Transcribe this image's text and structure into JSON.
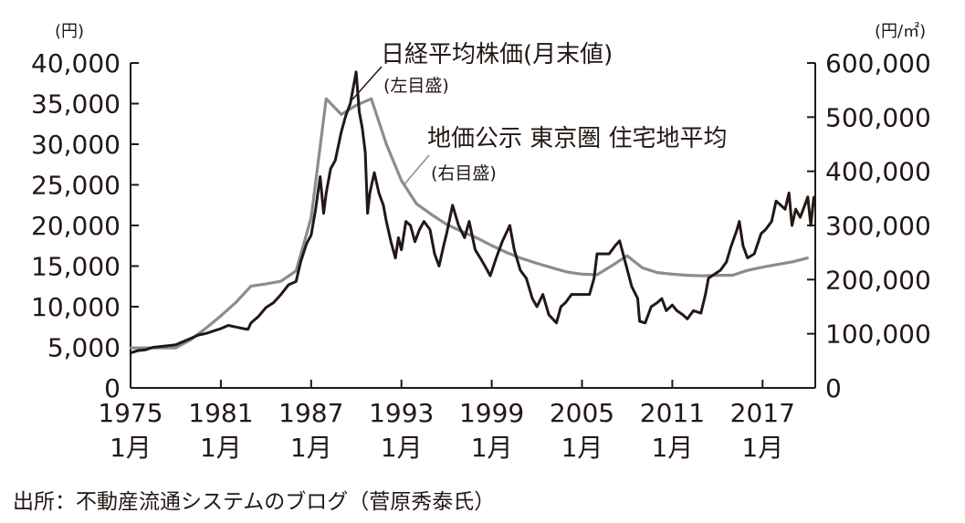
{
  "chart_data": {
    "type": "line",
    "title": "",
    "left_axis": {
      "unit": "(円)",
      "range": [
        0,
        40000
      ],
      "ticks": [
        0,
        5000,
        10000,
        15000,
        20000,
        25000,
        30000,
        35000,
        40000
      ],
      "tick_labels": [
        "0",
        "5,000",
        "10,000",
        "15,000",
        "20,000",
        "25,000",
        "30,000",
        "35,000",
        "40,000"
      ]
    },
    "right_axis": {
      "unit": "(円/㎡)",
      "range": [
        0,
        600000
      ],
      "ticks": [
        0,
        100000,
        200000,
        300000,
        400000,
        500000,
        600000
      ],
      "tick_labels": [
        "0",
        "100,000",
        "200,000",
        "300,000",
        "400,000",
        "500,000",
        "600,000"
      ]
    },
    "x_axis": {
      "range": [
        1975.0,
        2020.5
      ],
      "ticks": [
        1975,
        1981,
        1987,
        1993,
        1999,
        2005,
        2011,
        2017
      ],
      "tick_labels_year": [
        "1975",
        "1981",
        "1987",
        "1993",
        "1999",
        "2005",
        "2011",
        "2017"
      ],
      "tick_labels_month": [
        "1月",
        "1月",
        "1月",
        "1月",
        "1月",
        "1月",
        "1月",
        "1月"
      ]
    },
    "grid": false,
    "series": [
      {
        "name": "日経平均株価(月末値)",
        "axis_note": "(左目盛)",
        "axis": "left",
        "color": "#231815",
        "x": [
          1975.0,
          1975.5,
          1976.0,
          1976.5,
          1977.0,
          1977.5,
          1978.0,
          1978.5,
          1979.0,
          1979.5,
          1980.0,
          1980.5,
          1981.0,
          1981.5,
          1982.0,
          1982.5,
          1982.8,
          1983.0,
          1983.5,
          1984.0,
          1984.5,
          1985.0,
          1985.5,
          1986.0,
          1986.3,
          1986.7,
          1987.0,
          1987.3,
          1987.6,
          1987.83,
          1988.0,
          1988.3,
          1988.6,
          1989.0,
          1989.3,
          1989.6,
          1989.99,
          1990.2,
          1990.4,
          1990.6,
          1990.75,
          1990.9,
          1991.2,
          1991.5,
          1991.8,
          1992.0,
          1992.3,
          1992.6,
          1992.8,
          1993.0,
          1993.3,
          1993.6,
          1993.9,
          1994.2,
          1994.5,
          1994.9,
          1995.2,
          1995.5,
          1995.8,
          1996.0,
          1996.4,
          1996.8,
          1997.2,
          1997.5,
          1997.9,
          1998.3,
          1998.7,
          1998.9,
          1999.3,
          1999.7,
          2000.2,
          2000.5,
          2000.9,
          2001.3,
          2001.7,
          2002.0,
          2002.4,
          2002.8,
          2003.3,
          2003.6,
          2003.9,
          2004.3,
          2004.7,
          2005.0,
          2005.5,
          2005.8,
          2006.0,
          2006.4,
          2006.8,
          2007.2,
          2007.5,
          2007.9,
          2008.3,
          2008.7,
          2008.83,
          2009.2,
          2009.6,
          2010.0,
          2010.3,
          2010.6,
          2011.0,
          2011.3,
          2011.7,
          2012.0,
          2012.4,
          2012.9,
          2013.2,
          2013.4,
          2013.8,
          2014.2,
          2014.6,
          2014.9,
          2015.3,
          2015.45,
          2015.7,
          2016.0,
          2016.45,
          2016.9,
          2017.2,
          2017.6,
          2017.9,
          2018.2,
          2018.5,
          2018.75,
          2018.95,
          2019.2,
          2019.5,
          2019.8,
          2020.0,
          2020.2,
          2020.4
        ],
        "values": [
          4300,
          4600,
          4700,
          5000,
          5100,
          5200,
          5300,
          5700,
          6100,
          6500,
          6700,
          7000,
          7300,
          7700,
          7500,
          7300,
          7200,
          8000,
          8800,
          9900,
          10500,
          11500,
          12700,
          13100,
          15500,
          17800,
          18800,
          22000,
          26000,
          21500,
          24000,
          27000,
          28000,
          31500,
          33500,
          35000,
          38900,
          34000,
          32000,
          29000,
          21500,
          24000,
          26500,
          24000,
          22500,
          20500,
          18000,
          16000,
          18500,
          17000,
          20500,
          20000,
          18000,
          19500,
          20500,
          19500,
          16500,
          15000,
          17500,
          19000,
          22500,
          20000,
          18500,
          20500,
          17000,
          15800,
          14500,
          13800,
          16000,
          18000,
          20000,
          17000,
          14500,
          13500,
          11000,
          10000,
          11500,
          9000,
          8000,
          10000,
          10500,
          11500,
          11500,
          11500,
          11500,
          13500,
          16500,
          16500,
          16500,
          17500,
          18100,
          15300,
          12500,
          11000,
          8200,
          8000,
          10000,
          10500,
          11000,
          9500,
          10200,
          9500,
          9000,
          8500,
          9500,
          9200,
          11500,
          13500,
          14000,
          14500,
          15500,
          17400,
          19500,
          20500,
          17500,
          16000,
          16500,
          19000,
          19500,
          20500,
          23000,
          22500,
          22000,
          24000,
          20000,
          22000,
          21000,
          22500,
          23500,
          20000,
          23500
        ]
      },
      {
        "name": "地価公示 東京圏 住宅地平均",
        "axis_note": "(右目盛)",
        "axis": "right",
        "color": "#8c8c8c",
        "x": [
          1975.0,
          1976.0,
          1977.0,
          1978.0,
          1979.0,
          1980.0,
          1981.0,
          1982.0,
          1983.0,
          1984.0,
          1985.0,
          1986.0,
          1987.0,
          1988.0,
          1989.0,
          1990.0,
          1991.0,
          1992.0,
          1993.0,
          1994.0,
          1995.0,
          1996.0,
          1997.0,
          1998.0,
          1999.0,
          2000.0,
          2001.0,
          2002.0,
          2003.0,
          2004.0,
          2005.0,
          2006.0,
          2007.0,
          2008.0,
          2009.0,
          2010.0,
          2011.0,
          2012.0,
          2013.0,
          2014.0,
          2015.0,
          2016.0,
          2017.0,
          2018.0,
          2019.0,
          2020.0
        ],
        "values": [
          74000,
          74000,
          74000,
          74000,
          89000,
          110000,
          133000,
          158000,
          188000,
          192000,
          197000,
          216000,
          314000,
          534000,
          505000,
          522000,
          534000,
          450000,
          383000,
          340000,
          320000,
          302000,
          289000,
          277000,
          263000,
          250000,
          239000,
          230000,
          222000,
          214000,
          210000,
          209000,
          226000,
          244000,
          222000,
          213000,
          210000,
          208000,
          207000,
          208000,
          208000,
          217000,
          223000,
          228000,
          233000,
          240000
        ]
      }
    ]
  },
  "source_note": "出所：不動産流通システムのブログ（菅原秀泰氏）",
  "colors": {
    "text": "#231815",
    "axis": "#231815",
    "stock_line": "#231815",
    "land_line": "#8c8c8c"
  }
}
